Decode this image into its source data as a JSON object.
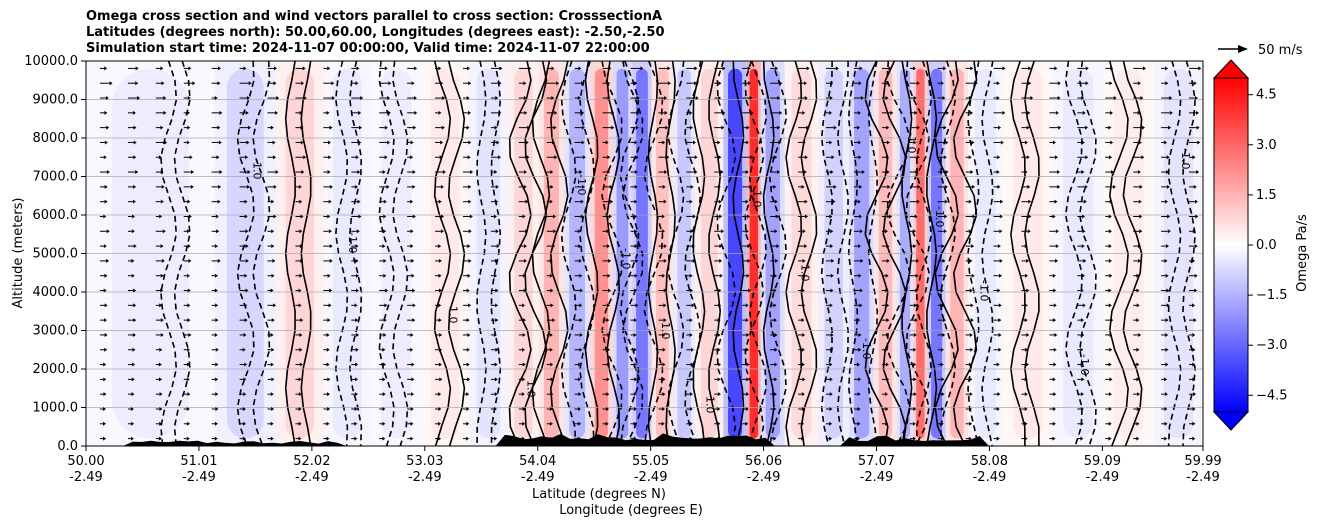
{
  "chart_data": {
    "type": "heatmap",
    "title_lines": [
      "Omega cross section and wind vectors parallel to cross section: CrosssectionA",
      "Latitudes (degrees north): 50.00,60.00, Longitudes (degrees east): -2.50,-2.50",
      "Simulation start time: 2024-11-07 00:00:00, Valid time: 2024-11-07 22:00:00"
    ],
    "ylabel": "Altitude (meters)",
    "xlabel_lines": [
      "Latitude (degrees N)",
      "Longitude (degrees E)"
    ],
    "ylim": [
      0,
      10000
    ],
    "xlim": [
      50.0,
      59.99
    ],
    "yticks": [
      0,
      1000,
      2000,
      3000,
      4000,
      5000,
      6000,
      7000,
      8000,
      9000,
      10000
    ],
    "ytick_labels": [
      "0.0",
      "1000.0",
      "2000.0",
      "3000.0",
      "4000.0",
      "5000.0",
      "6000.0",
      "7000.0",
      "8000.0",
      "9000.0",
      "10000.0"
    ],
    "xticks": [
      {
        "lat": "50.00",
        "lon": "-2.49"
      },
      {
        "lat": "51.01",
        "lon": "-2.49"
      },
      {
        "lat": "52.02",
        "lon": "-2.49"
      },
      {
        "lat": "53.03",
        "lon": "-2.49"
      },
      {
        "lat": "54.04",
        "lon": "-2.49"
      },
      {
        "lat": "55.05",
        "lon": "-2.49"
      },
      {
        "lat": "56.06",
        "lon": "-2.49"
      },
      {
        "lat": "57.07",
        "lon": "-2.49"
      },
      {
        "lat": "58.08",
        "lon": "-2.49"
      },
      {
        "lat": "59.09",
        "lon": "-2.49"
      },
      {
        "lat": "59.99",
        "lon": "-2.49"
      }
    ],
    "colorbar": {
      "label": "Omega Pa/s",
      "range": [
        -5,
        5
      ],
      "ticks": [
        4.5,
        3.0,
        1.5,
        0.0,
        -1.5,
        -3.0,
        -4.5
      ],
      "tick_labels": [
        "4.5",
        "3.0",
        "1.5",
        "0.0",
        "−1.5",
        "−3.0",
        "−4.5"
      ],
      "positive_color": "#ff0000",
      "negative_color": "#0000ff",
      "extend": "both"
    },
    "quiver_key": {
      "label": "50 m/s"
    },
    "grid": true,
    "contour_labels": [
      "0.0",
      "1.0",
      "-1.0"
    ],
    "omega_bands": [
      {
        "lat": 50.8,
        "value": -0.4
      },
      {
        "lat": 51.5,
        "value": -0.9
      },
      {
        "lat": 51.9,
        "value": 0.9
      },
      {
        "lat": 52.35,
        "value": -0.5
      },
      {
        "lat": 52.75,
        "value": -0.4
      },
      {
        "lat": 53.25,
        "value": 0.5
      },
      {
        "lat": 53.6,
        "value": -0.6
      },
      {
        "lat": 53.95,
        "value": 0.9
      },
      {
        "lat": 54.15,
        "value": 1.6
      },
      {
        "lat": 54.4,
        "value": -1.6
      },
      {
        "lat": 54.62,
        "value": 2.4
      },
      {
        "lat": 54.8,
        "value": -2.2
      },
      {
        "lat": 54.97,
        "value": -3.0
      },
      {
        "lat": 55.15,
        "value": 1.4
      },
      {
        "lat": 55.35,
        "value": -1.2
      },
      {
        "lat": 55.55,
        "value": 0.9
      },
      {
        "lat": 55.85,
        "value": -4.0
      },
      {
        "lat": 55.97,
        "value": 4.6
      },
      {
        "lat": 56.1,
        "value": -2.0
      },
      {
        "lat": 56.4,
        "value": 0.8
      },
      {
        "lat": 56.7,
        "value": -1.0
      },
      {
        "lat": 56.95,
        "value": -2.0
      },
      {
        "lat": 57.15,
        "value": 1.5
      },
      {
        "lat": 57.35,
        "value": -1.8
      },
      {
        "lat": 57.45,
        "value": 3.2
      },
      {
        "lat": 57.6,
        "value": -3.0
      },
      {
        "lat": 57.78,
        "value": 1.6
      },
      {
        "lat": 58.0,
        "value": -0.5
      },
      {
        "lat": 58.4,
        "value": 0.5
      },
      {
        "lat": 58.9,
        "value": -0.5
      },
      {
        "lat": 59.3,
        "value": 0.4
      },
      {
        "lat": 59.8,
        "value": -0.6
      }
    ]
  }
}
